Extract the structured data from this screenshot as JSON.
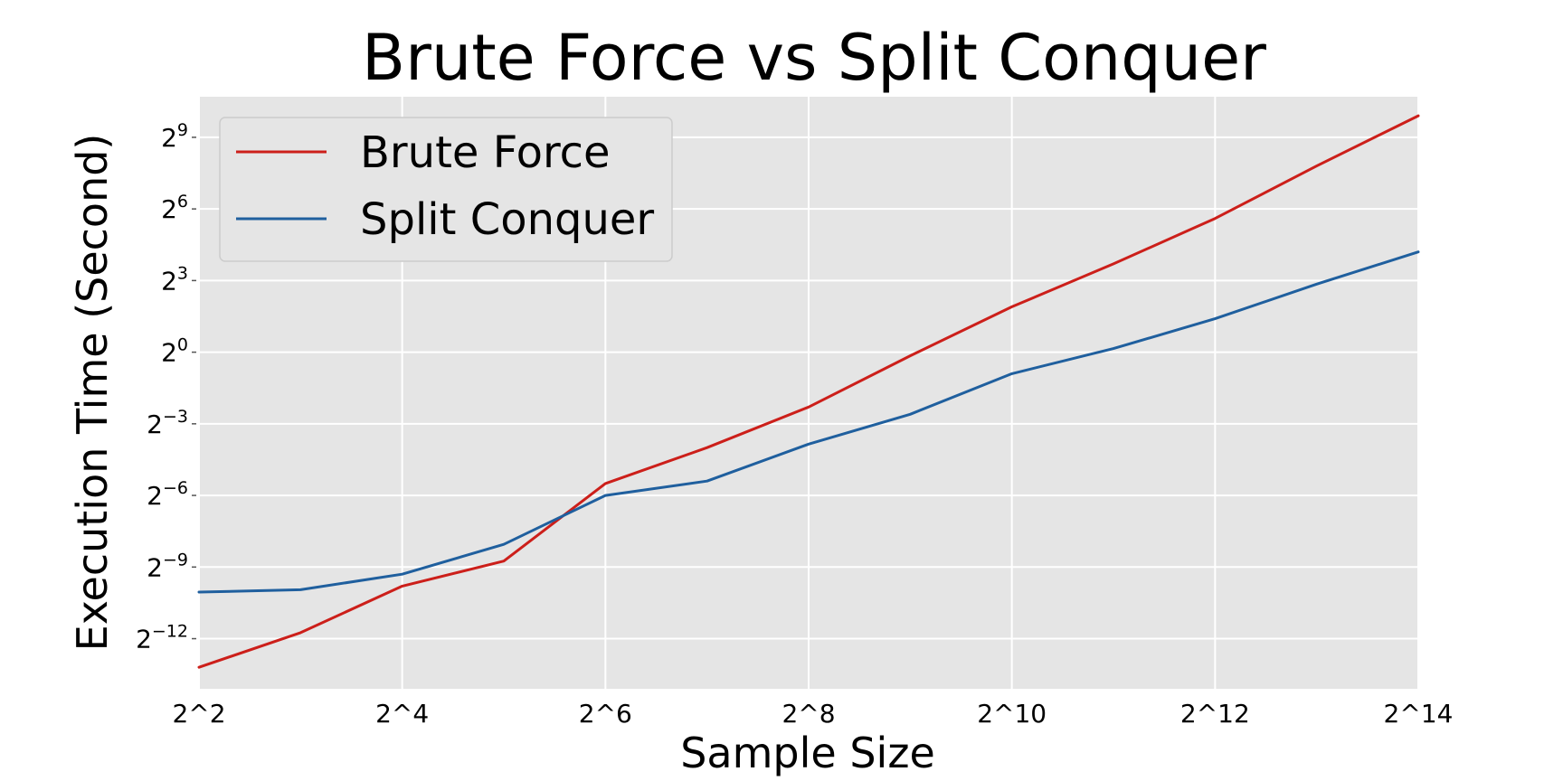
{
  "chart_data": {
    "type": "line",
    "title": "Brute Force vs Split Conquer",
    "xlabel": "Sample Size",
    "ylabel": "Execution Time (Second)",
    "x": [
      2,
      3,
      4,
      5,
      6,
      7,
      8,
      9,
      10,
      11,
      12,
      13,
      14
    ],
    "x_ticks": [
      2,
      4,
      6,
      8,
      10,
      12,
      14
    ],
    "x_tick_labels": [
      "2^2",
      "2^4",
      "2^6",
      "2^8",
      "2^10",
      "2^12",
      "2^14"
    ],
    "xlim": [
      2,
      14
    ],
    "y_scale": "log2",
    "y_ticks": [
      -12,
      -9,
      -6,
      -3,
      0,
      3,
      6,
      9
    ],
    "y_tick_base": "2",
    "y_tick_exponents": [
      "−12",
      "−9",
      "−6",
      "−3",
      "0",
      "3",
      "6",
      "9"
    ],
    "ylim_exponent": [
      -14.1,
      10.7
    ],
    "grid": true,
    "legend_position": "upper-left",
    "series": [
      {
        "name": "Brute Force",
        "color": "#cc1f1a",
        "y_exponent": [
          -13.2,
          -11.75,
          -9.8,
          -8.75,
          -5.5,
          -4.0,
          -2.3,
          -0.15,
          1.9,
          3.7,
          5.6,
          7.8,
          9.9
        ]
      },
      {
        "name": "Split Conquer",
        "color": "#1f5f9e",
        "y_exponent": [
          -10.05,
          -9.95,
          -9.3,
          -8.05,
          -6.0,
          -5.4,
          -3.85,
          -2.6,
          -0.9,
          0.15,
          1.4,
          2.85,
          4.2
        ]
      }
    ]
  }
}
